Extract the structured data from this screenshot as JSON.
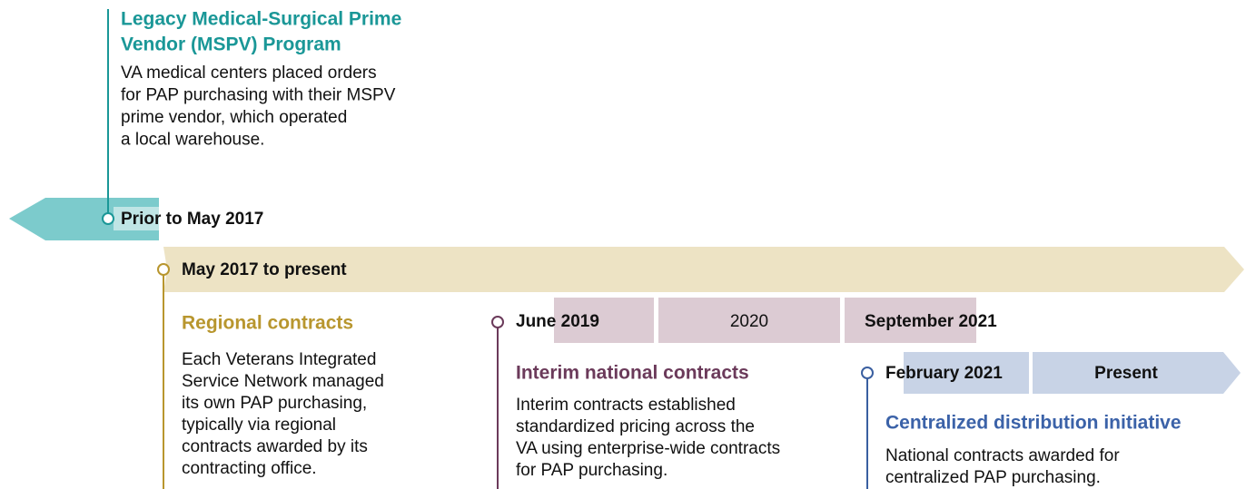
{
  "legacy": {
    "title": [
      "Legacy Medical-Surgical Prime",
      "Vendor (MSPV) Program"
    ],
    "description": [
      "VA medical centers placed orders",
      "for PAP purchasing with their MSPV",
      "prime vendor, which operated",
      "a local warehouse."
    ],
    "date": "Prior to May 2017"
  },
  "current": {
    "date": "May 2017 to present"
  },
  "regional": {
    "title": "Regional contracts",
    "description": [
      "Each Veterans Integrated",
      "Service Network managed",
      "its own PAP purchasing,",
      "typically via regional",
      "contracts awarded by its",
      "contracting office."
    ]
  },
  "interim": {
    "dates": [
      "June 2019",
      "2020",
      "September 2021"
    ],
    "title": "Interim national contracts",
    "description": [
      "Interim contracts established",
      "standardized pricing across the",
      "VA using enterprise-wide contracts",
      "for PAP purchasing."
    ]
  },
  "centralized": {
    "dates": [
      "February 2021",
      "Present"
    ],
    "title": "Centralized distribution initiative",
    "description": [
      "National contracts awarded for",
      "centralized PAP purchasing."
    ]
  }
}
